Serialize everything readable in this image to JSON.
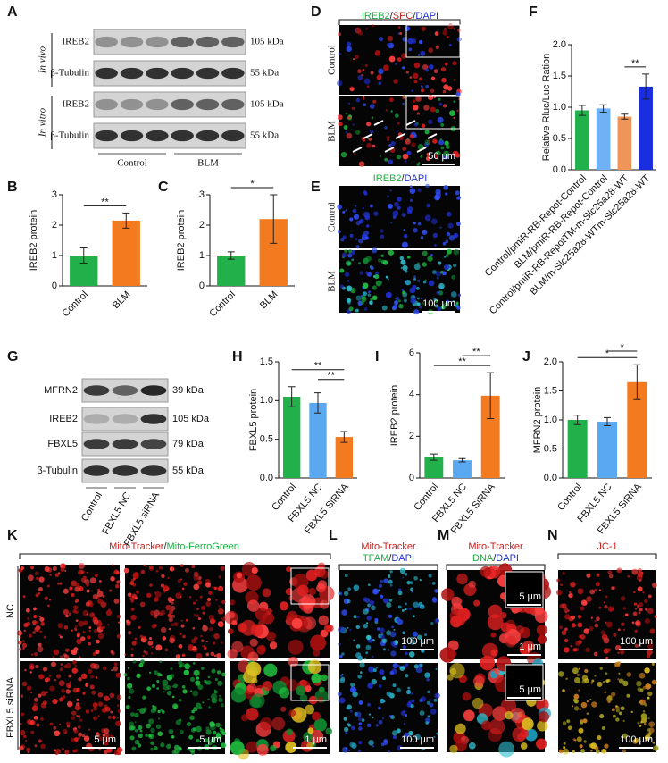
{
  "blot_a": {
    "label": "A",
    "rows": [
      {
        "name": "IREB2",
        "kda": "105 kDa"
      },
      {
        "name": "β-Tubulin",
        "kda": "55 kDa"
      },
      {
        "name": "IREB2",
        "kda": "105 kDa"
      },
      {
        "name": "β-Tubulin",
        "kda": "55 kDa"
      }
    ],
    "groups": [
      "In vivo",
      "In vitro"
    ],
    "lanes": [
      "Control",
      "BLM"
    ]
  },
  "blot_g": {
    "label": "G",
    "rows": [
      {
        "name": "MFRN2",
        "kda": "39 kDa"
      },
      {
        "name": "IREB2",
        "kda": "105 kDa"
      },
      {
        "name": "FBXL5",
        "kda": "79 kDa"
      },
      {
        "name": "β-Tubulin",
        "kda": "55 kDa"
      }
    ],
    "lanes": [
      "Control",
      "FBXL5 NC",
      "FBXL5 siRNA"
    ]
  },
  "images": [
    {
      "label": "D",
      "title": [
        [
          {
            "text": "IREB2",
            "color": "#1fae45"
          },
          {
            "text": "/",
            "color": "#222222"
          },
          {
            "text": "SPC",
            "color": "#c81e1e"
          },
          {
            "text": "/",
            "color": "#222222"
          },
          {
            "text": "DAPI",
            "color": "#2233cc"
          }
        ]
      ],
      "rows": [
        "Control",
        "BLM"
      ],
      "scale_bars": [
        "50 μm"
      ]
    },
    {
      "label": "E",
      "title": [
        [
          {
            "text": "IREB2",
            "color": "#1fae45"
          },
          {
            "text": "/",
            "color": "#222222"
          },
          {
            "text": "DAPI",
            "color": "#2233cc"
          }
        ]
      ],
      "rows": [
        "Control",
        "BLM"
      ],
      "scale_bars": [
        "100 μm"
      ]
    },
    {
      "label": "K",
      "title": [
        [
          {
            "text": "Mito-Tracker",
            "color": "#c81e1e"
          },
          {
            "text": "/",
            "color": "#222222"
          },
          {
            "text": "Mito-FerroGreen",
            "color": "#1fae45"
          }
        ]
      ],
      "rows": [
        "NC",
        "FBXL5 siRNA"
      ],
      "scale_bars": [
        "5 μm",
        "5 μm",
        "1 μm"
      ]
    },
    {
      "label": "L",
      "title": [
        [
          {
            "text": "Mito-Tracker",
            "color": "#c81e1e"
          }
        ],
        [
          {
            "text": "TFAM",
            "color": "#1fae45"
          },
          {
            "text": "/",
            "color": "#222222"
          },
          {
            "text": "DAPI",
            "color": "#2233cc"
          }
        ]
      ],
      "rows": [],
      "scale_bars": [
        "100 μm",
        "100 μm"
      ]
    },
    {
      "label": "M",
      "title": [
        [
          {
            "text": "Mito-Tracker",
            "color": "#c81e1e"
          }
        ],
        [
          {
            "text": "DNA",
            "color": "#1fae45"
          },
          {
            "text": "/",
            "color": "#222222"
          },
          {
            "text": "DAPI",
            "color": "#2233cc"
          }
        ]
      ],
      "rows": [],
      "scale_bars": [
        "5 μm",
        "1 μm",
        "5 μm"
      ]
    },
    {
      "label": "N",
      "title": [
        [
          {
            "text": "JC-1",
            "color": "#c81e1e"
          }
        ]
      ],
      "rows": [],
      "scale_bars": [
        "100 μm",
        "100 μm"
      ]
    }
  ],
  "chart_data": [
    {
      "type": "bar",
      "label": "B",
      "ylabel": "IREB2 protein",
      "categories": [
        "Control",
        "BLM"
      ],
      "values": [
        1.0,
        2.15
      ],
      "errors": [
        0.25,
        0.25
      ],
      "colors": [
        "#22b04b",
        "#f47a20"
      ],
      "ylim": [
        0,
        3
      ],
      "yticks": [
        0,
        1,
        2,
        3
      ],
      "comparisons": [
        {
          "groups": [
            "Control",
            "BLM"
          ],
          "label": "**"
        }
      ]
    },
    {
      "type": "bar",
      "label": "C",
      "ylabel": "IREB2 protein",
      "categories": [
        "Control",
        "BLM"
      ],
      "values": [
        1.0,
        2.2
      ],
      "errors": [
        0.12,
        0.8
      ],
      "colors": [
        "#22b04b",
        "#f47a20"
      ],
      "ylim": [
        0,
        3
      ],
      "yticks": [
        0,
        1,
        2,
        3
      ],
      "comparisons": [
        {
          "groups": [
            "Control",
            "BLM"
          ],
          "label": "*"
        }
      ]
    },
    {
      "type": "bar",
      "label": "F",
      "ylabel": "Relative Rluc/Luc Ration",
      "categories": [
        "Control/pmiR-RB-Repot-Control",
        "BLM/pmiR-RB-Repot-Control",
        "Control/pmiR-RB-RepotTM-m-Slc25a28-WT",
        "BLM/m-Slc25a28-WTm-Slc25a28-WT"
      ],
      "values": [
        0.95,
        0.98,
        0.85,
        1.33
      ],
      "errors": [
        0.08,
        0.06,
        0.04,
        0.2
      ],
      "colors": [
        "#22b04b",
        "#6fb1f5",
        "#f0955a",
        "#1a2ee0"
      ],
      "ylim": [
        0,
        2
      ],
      "yticks": [
        {
          "value": 0,
          "label": "0.0"
        },
        {
          "value": 0.5,
          "label": "0.5"
        },
        {
          "value": 1,
          "label": "1.0"
        },
        {
          "value": 1.5,
          "label": "1.5"
        },
        {
          "value": 2,
          "label": "2.0"
        }
      ],
      "comparisons": [
        {
          "groups": [
            "Control/pmiR-RB-RepotTM-m-Slc25a28-WT",
            "BLM/m-Slc25a28-WTm-Slc25a28-WT"
          ],
          "label": "**"
        }
      ]
    },
    {
      "type": "bar",
      "label": "H",
      "ylabel": "FBXL5 protein",
      "categories": [
        "Control",
        "FBXL5 NC",
        "FBXL5 SiRNA"
      ],
      "values": [
        1.05,
        0.97,
        0.53
      ],
      "errors": [
        0.13,
        0.13,
        0.07
      ],
      "colors": [
        "#22b04b",
        "#5aa8f0",
        "#f47a20"
      ],
      "ylim": [
        0,
        1.5
      ],
      "yticks": [
        {
          "value": 0,
          "label": "0.0"
        },
        {
          "value": 0.5,
          "label": "0.5"
        },
        {
          "value": 1,
          "label": "1.0"
        },
        {
          "value": 1.5,
          "label": "1.5"
        }
      ],
      "comparisons": [
        {
          "groups": [
            "FBXL5 NC",
            "FBXL5 SiRNA"
          ],
          "label": "**"
        },
        {
          "groups": [
            "Control",
            "FBXL5 SiRNA"
          ],
          "label": "**"
        }
      ]
    },
    {
      "type": "bar",
      "label": "I",
      "ylabel": "IREB2 protein",
      "categories": [
        "Control",
        "FBXL5 NC",
        "FBXL5 SiRNA"
      ],
      "values": [
        1.0,
        0.85,
        3.95
      ],
      "errors": [
        0.15,
        0.08,
        1.1
      ],
      "colors": [
        "#22b04b",
        "#5aa8f0",
        "#f47a20"
      ],
      "ylim": [
        0,
        6
      ],
      "yticks": [
        0,
        2,
        4,
        6
      ],
      "comparisons": [
        {
          "groups": [
            "Control",
            "FBXL5 SiRNA"
          ],
          "label": "**"
        },
        {
          "groups": [
            "FBXL5 NC",
            "FBXL5 SiRNA"
          ],
          "label": "**"
        }
      ]
    },
    {
      "type": "bar",
      "label": "J",
      "ylabel": "MFRN2 protein",
      "categories": [
        "Control",
        "FBXL5 NC",
        "FBXL5 SiRNA"
      ],
      "values": [
        1.0,
        0.97,
        1.65
      ],
      "errors": [
        0.08,
        0.07,
        0.3
      ],
      "colors": [
        "#22b04b",
        "#5aa8f0",
        "#f47a20"
      ],
      "ylim": [
        0,
        2
      ],
      "yticks": [
        {
          "value": 0,
          "label": "0.0"
        },
        {
          "value": 0.5,
          "label": "0.5"
        },
        {
          "value": 1,
          "label": "1.0"
        },
        {
          "value": 1.5,
          "label": "1.5"
        },
        {
          "value": 2,
          "label": "2.0"
        }
      ],
      "comparisons": [
        {
          "groups": [
            "Control",
            "FBXL5 SiRNA"
          ],
          "label": "*"
        },
        {
          "groups": [
            "FBXL5 NC",
            "FBXL5 SiRNA"
          ],
          "label": "*"
        }
      ]
    }
  ]
}
